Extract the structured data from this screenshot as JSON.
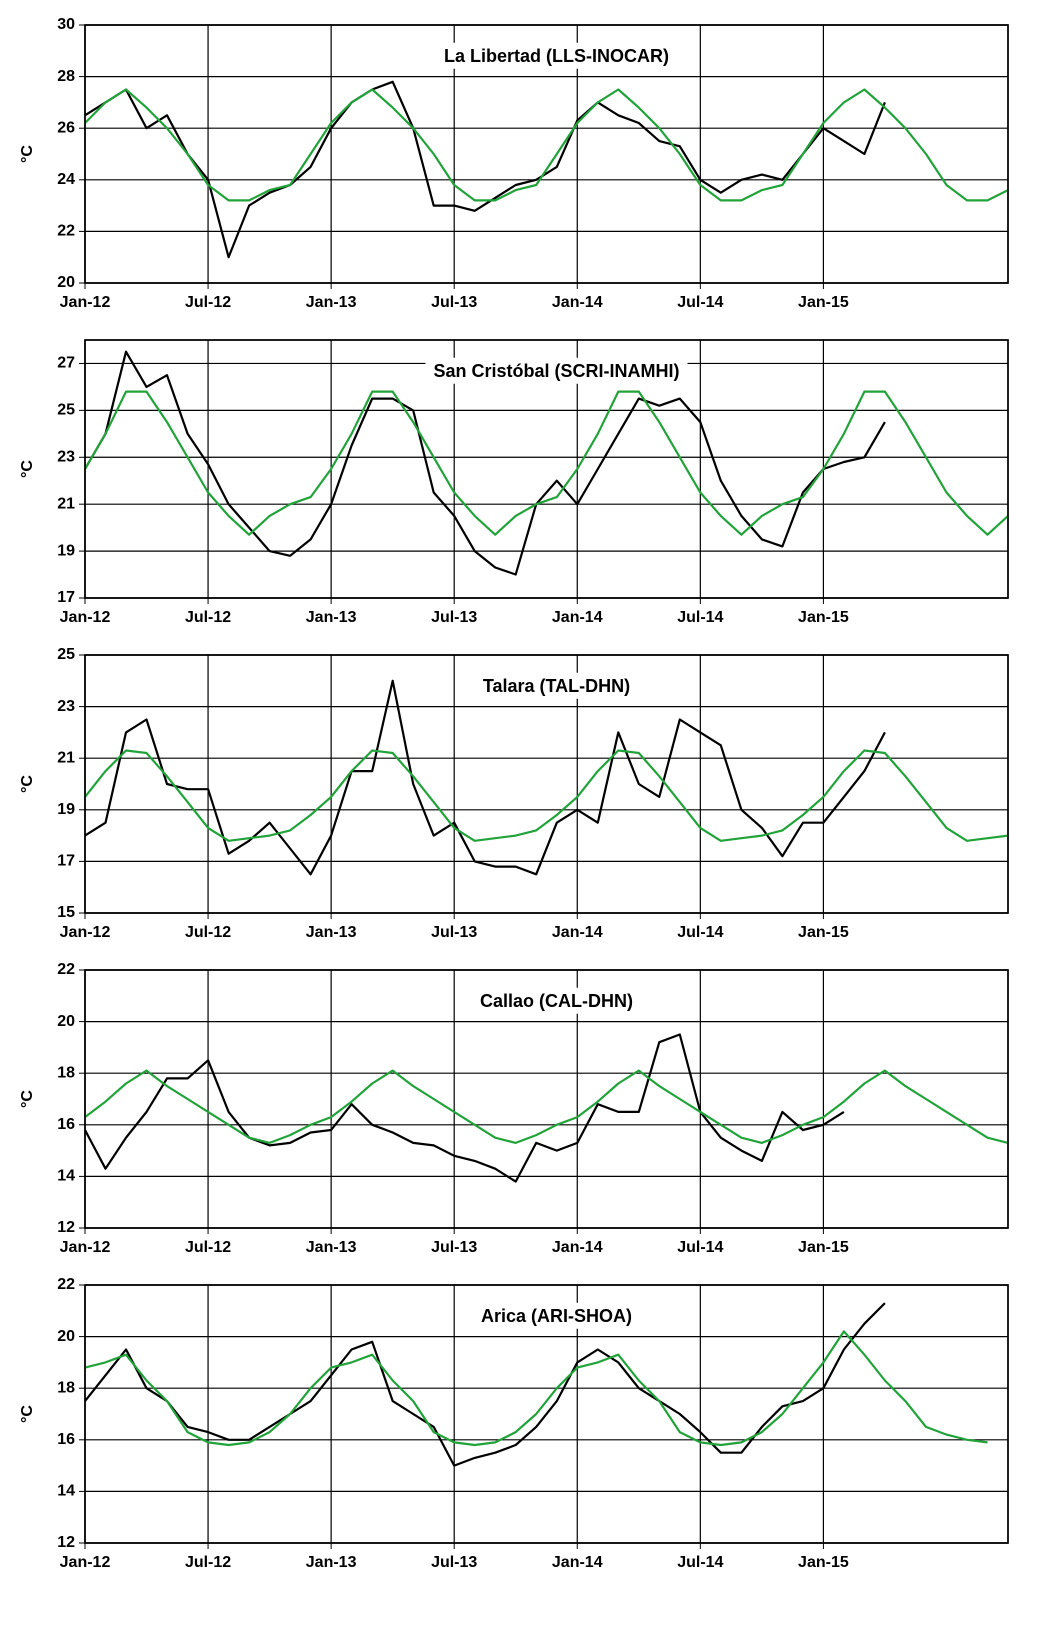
{
  "chart_data": [
    {
      "type": "line",
      "title": "La Libertad (LLS-INOCAR)",
      "ylabel": "°C",
      "x": [
        "2012-01",
        "2012-02",
        "2012-03",
        "2012-04",
        "2012-05",
        "2012-06",
        "2012-07",
        "2012-08",
        "2012-09",
        "2012-10",
        "2012-11",
        "2012-12",
        "2013-01",
        "2013-02",
        "2013-03",
        "2013-04",
        "2013-05",
        "2013-06",
        "2013-07",
        "2013-08",
        "2013-09",
        "2013-10",
        "2013-11",
        "2013-12",
        "2014-01",
        "2014-02",
        "2014-03",
        "2014-04",
        "2014-05",
        "2014-06",
        "2014-07",
        "2014-08",
        "2014-09",
        "2014-10",
        "2014-11",
        "2014-12",
        "2015-01",
        "2015-02",
        "2015-03",
        "2015-04",
        "2015-05",
        "2015-06",
        "2015-07",
        "2015-08",
        "2015-09",
        "2015-10"
      ],
      "xlim": [
        "2012-01",
        "2015-10"
      ],
      "xticks": [
        {
          "value": "2012-01",
          "label": "Jan-12"
        },
        {
          "value": "2012-07",
          "label": "Jul-12"
        },
        {
          "value": "2013-01",
          "label": "Jan-13"
        },
        {
          "value": "2013-07",
          "label": "Jul-13"
        },
        {
          "value": "2014-01",
          "label": "Jan-14"
        },
        {
          "value": "2014-07",
          "label": "Jul-14"
        },
        {
          "value": "2015-01",
          "label": "Jan-15"
        }
      ],
      "ylim": [
        20,
        30
      ],
      "yticks": [
        20,
        22,
        24,
        26,
        28,
        30
      ],
      "grid": true,
      "series": [
        {
          "color": "#000000",
          "values": [
            26.5,
            27,
            27.5,
            26,
            26.5,
            25,
            24,
            21,
            23,
            23.5,
            23.8,
            24.5,
            26,
            27,
            27.5,
            27.8,
            26,
            23,
            23,
            22.8,
            23.3,
            23.8,
            24,
            24.5,
            26.3,
            27,
            26.5,
            26.2,
            25.5,
            25.3,
            24,
            23.5,
            24,
            24.2,
            24,
            25,
            26,
            25.5,
            25,
            27,
            null,
            null,
            null,
            null,
            null,
            null
          ]
        },
        {
          "color": "#22a33a",
          "values": [
            26.2,
            27,
            27.5,
            26.8,
            26,
            25,
            23.8,
            23.2,
            23.2,
            23.6,
            23.8,
            25,
            26.2,
            27,
            27.5,
            26.8,
            26,
            25,
            23.8,
            23.2,
            23.2,
            23.6,
            23.8,
            25,
            26.2,
            27,
            27.5,
            26.8,
            26,
            25,
            23.8,
            23.2,
            23.2,
            23.6,
            23.8,
            25,
            26.2,
            27,
            27.5,
            26.8,
            26,
            25,
            23.8,
            23.2,
            23.2,
            23.6
          ]
        }
      ]
    },
    {
      "type": "line",
      "title": "San Cristóbal (SCRI-INAMHI)",
      "ylabel": "°C",
      "x": [
        "2012-01",
        "2012-02",
        "2012-03",
        "2012-04",
        "2012-05",
        "2012-06",
        "2012-07",
        "2012-08",
        "2012-09",
        "2012-10",
        "2012-11",
        "2012-12",
        "2013-01",
        "2013-02",
        "2013-03",
        "2013-04",
        "2013-05",
        "2013-06",
        "2013-07",
        "2013-08",
        "2013-09",
        "2013-10",
        "2013-11",
        "2013-12",
        "2014-01",
        "2014-02",
        "2014-03",
        "2014-04",
        "2014-05",
        "2014-06",
        "2014-07",
        "2014-08",
        "2014-09",
        "2014-10",
        "2014-11",
        "2014-12",
        "2015-01",
        "2015-02",
        "2015-03",
        "2015-04",
        "2015-05",
        "2015-06",
        "2015-07",
        "2015-08",
        "2015-09",
        "2015-10"
      ],
      "xlim": [
        "2012-01",
        "2015-10"
      ],
      "xticks": [
        {
          "value": "2012-01",
          "label": "Jan-12"
        },
        {
          "value": "2012-07",
          "label": "Jul-12"
        },
        {
          "value": "2013-01",
          "label": "Jan-13"
        },
        {
          "value": "2013-07",
          "label": "Jul-13"
        },
        {
          "value": "2014-01",
          "label": "Jan-14"
        },
        {
          "value": "2014-07",
          "label": "Jul-14"
        },
        {
          "value": "2015-01",
          "label": "Jan-15"
        }
      ],
      "ylim": [
        17,
        28
      ],
      "yticks": [
        17,
        19,
        21,
        23,
        25,
        27
      ],
      "grid": true,
      "series": [
        {
          "color": "#000000",
          "values": [
            22.5,
            24,
            27.5,
            26,
            26.5,
            24,
            22.7,
            21,
            20,
            19,
            18.8,
            19.5,
            21,
            23.5,
            25.5,
            25.5,
            25,
            21.5,
            20.5,
            19,
            18.3,
            18,
            21,
            22,
            21,
            22.5,
            24,
            25.5,
            25.2,
            25.5,
            24.5,
            22,
            20.5,
            19.5,
            19.2,
            21.5,
            22.5,
            22.8,
            23,
            24.5,
            null,
            null,
            null,
            null,
            null,
            null
          ]
        },
        {
          "color": "#22a33a",
          "values": [
            22.5,
            24,
            25.8,
            25.8,
            24.5,
            23,
            21.5,
            20.5,
            19.7,
            20.5,
            21,
            21.3,
            22.5,
            24,
            25.8,
            25.8,
            24.5,
            23,
            21.5,
            20.5,
            19.7,
            20.5,
            21,
            21.3,
            22.5,
            24,
            25.8,
            25.8,
            24.5,
            23,
            21.5,
            20.5,
            19.7,
            20.5,
            21,
            21.3,
            22.5,
            24,
            25.8,
            25.8,
            24.5,
            23,
            21.5,
            20.5,
            19.7,
            20.5
          ]
        }
      ]
    },
    {
      "type": "line",
      "title": "Talara (TAL-DHN)",
      "ylabel": "°C",
      "x": [
        "2012-01",
        "2012-02",
        "2012-03",
        "2012-04",
        "2012-05",
        "2012-06",
        "2012-07",
        "2012-08",
        "2012-09",
        "2012-10",
        "2012-11",
        "2012-12",
        "2013-01",
        "2013-02",
        "2013-03",
        "2013-04",
        "2013-05",
        "2013-06",
        "2013-07",
        "2013-08",
        "2013-09",
        "2013-10",
        "2013-11",
        "2013-12",
        "2014-01",
        "2014-02",
        "2014-03",
        "2014-04",
        "2014-05",
        "2014-06",
        "2014-07",
        "2014-08",
        "2014-09",
        "2014-10",
        "2014-11",
        "2014-12",
        "2015-01",
        "2015-02",
        "2015-03",
        "2015-04",
        "2015-05",
        "2015-06",
        "2015-07",
        "2015-08",
        "2015-09",
        "2015-10"
      ],
      "xlim": [
        "2012-01",
        "2015-10"
      ],
      "xticks": [
        {
          "value": "2012-01",
          "label": "Jan-12"
        },
        {
          "value": "2012-07",
          "label": "Jul-12"
        },
        {
          "value": "2013-01",
          "label": "Jan-13"
        },
        {
          "value": "2013-07",
          "label": "Jul-13"
        },
        {
          "value": "2014-01",
          "label": "Jan-14"
        },
        {
          "value": "2014-07",
          "label": "Jul-14"
        },
        {
          "value": "2015-01",
          "label": "Jan-15"
        }
      ],
      "ylim": [
        15,
        25
      ],
      "yticks": [
        15,
        17,
        19,
        21,
        23,
        25
      ],
      "grid": true,
      "series": [
        {
          "color": "#000000",
          "values": [
            18,
            18.5,
            22,
            22.5,
            20,
            19.8,
            19.8,
            17.3,
            17.8,
            18.5,
            17.5,
            16.5,
            18,
            20.5,
            20.5,
            24,
            20,
            18,
            18.5,
            17,
            16.8,
            16.8,
            16.5,
            18.5,
            19,
            18.5,
            22,
            20,
            19.5,
            22.5,
            22,
            21.5,
            19,
            18.3,
            17.2,
            18.5,
            18.5,
            19.5,
            20.5,
            22,
            null,
            null,
            null,
            null,
            null,
            null
          ]
        },
        {
          "color": "#22a33a",
          "values": [
            19.5,
            20.5,
            21.3,
            21.2,
            20.3,
            19.3,
            18.3,
            17.8,
            17.9,
            18,
            18.2,
            18.8,
            19.5,
            20.5,
            21.3,
            21.2,
            20.3,
            19.3,
            18.3,
            17.8,
            17.9,
            18,
            18.2,
            18.8,
            19.5,
            20.5,
            21.3,
            21.2,
            20.3,
            19.3,
            18.3,
            17.8,
            17.9,
            18,
            18.2,
            18.8,
            19.5,
            20.5,
            21.3,
            21.2,
            20.3,
            19.3,
            18.3,
            17.8,
            17.9,
            18
          ]
        }
      ]
    },
    {
      "type": "line",
      "title": "Callao (CAL-DHN)",
      "ylabel": "°C",
      "x": [
        "2012-01",
        "2012-02",
        "2012-03",
        "2012-04",
        "2012-05",
        "2012-06",
        "2012-07",
        "2012-08",
        "2012-09",
        "2012-10",
        "2012-11",
        "2012-12",
        "2013-01",
        "2013-02",
        "2013-03",
        "2013-04",
        "2013-05",
        "2013-06",
        "2013-07",
        "2013-08",
        "2013-09",
        "2013-10",
        "2013-11",
        "2013-12",
        "2014-01",
        "2014-02",
        "2014-03",
        "2014-04",
        "2014-05",
        "2014-06",
        "2014-07",
        "2014-08",
        "2014-09",
        "2014-10",
        "2014-11",
        "2014-12",
        "2015-01",
        "2015-02",
        "2015-03",
        "2015-04",
        "2015-05",
        "2015-06",
        "2015-07",
        "2015-08",
        "2015-09",
        "2015-10"
      ],
      "xlim": [
        "2012-01",
        "2015-10"
      ],
      "xticks": [
        {
          "value": "2012-01",
          "label": "Jan-12"
        },
        {
          "value": "2012-07",
          "label": "Jul-12"
        },
        {
          "value": "2013-01",
          "label": "Jan-13"
        },
        {
          "value": "2013-07",
          "label": "Jul-13"
        },
        {
          "value": "2014-01",
          "label": "Jan-14"
        },
        {
          "value": "2014-07",
          "label": "Jul-14"
        },
        {
          "value": "2015-01",
          "label": "Jan-15"
        }
      ],
      "ylim": [
        12,
        22
      ],
      "yticks": [
        12,
        14,
        16,
        18,
        20,
        22
      ],
      "grid": true,
      "series": [
        {
          "color": "#000000",
          "values": [
            15.8,
            14.3,
            15.5,
            16.5,
            17.8,
            17.8,
            18.5,
            16.5,
            15.5,
            15.2,
            15.3,
            15.7,
            15.8,
            16.8,
            16,
            15.7,
            15.3,
            15.2,
            14.8,
            14.6,
            14.3,
            13.8,
            15.3,
            15,
            15.3,
            16.8,
            16.5,
            16.5,
            19.2,
            19.5,
            16.5,
            15.5,
            15,
            14.6,
            16.5,
            15.8,
            16,
            16.5,
            null,
            null,
            null,
            null,
            null,
            null,
            null,
            null
          ]
        },
        {
          "color": "#22a33a",
          "values": [
            16.3,
            16.9,
            17.6,
            18.1,
            17.5,
            17,
            16.5,
            16,
            15.5,
            15.3,
            15.6,
            16,
            16.3,
            16.9,
            17.6,
            18.1,
            17.5,
            17,
            16.5,
            16,
            15.5,
            15.3,
            15.6,
            16,
            16.3,
            16.9,
            17.6,
            18.1,
            17.5,
            17,
            16.5,
            16,
            15.5,
            15.3,
            15.6,
            16,
            16.3,
            16.9,
            17.6,
            18.1,
            17.5,
            17,
            16.5,
            16,
            15.5,
            15.3
          ]
        }
      ]
    },
    {
      "type": "line",
      "title": "Arica (ARI-SHOA)",
      "ylabel": "°C",
      "x": [
        "2012-01",
        "2012-02",
        "2012-03",
        "2012-04",
        "2012-05",
        "2012-06",
        "2012-07",
        "2012-08",
        "2012-09",
        "2012-10",
        "2012-11",
        "2012-12",
        "2013-01",
        "2013-02",
        "2013-03",
        "2013-04",
        "2013-05",
        "2013-06",
        "2013-07",
        "2013-08",
        "2013-09",
        "2013-10",
        "2013-11",
        "2013-12",
        "2014-01",
        "2014-02",
        "2014-03",
        "2014-04",
        "2014-05",
        "2014-06",
        "2014-07",
        "2014-08",
        "2014-09",
        "2014-10",
        "2014-11",
        "2014-12",
        "2015-01",
        "2015-02",
        "2015-03",
        "2015-04",
        "2015-05",
        "2015-06",
        "2015-07",
        "2015-08",
        "2015-09",
        "2015-10"
      ],
      "xlim": [
        "2012-01",
        "2015-10"
      ],
      "xticks": [
        {
          "value": "2012-01",
          "label": "Jan-12"
        },
        {
          "value": "2012-07",
          "label": "Jul-12"
        },
        {
          "value": "2013-01",
          "label": "Jan-13"
        },
        {
          "value": "2013-07",
          "label": "Jul-13"
        },
        {
          "value": "2014-01",
          "label": "Jan-14"
        },
        {
          "value": "2014-07",
          "label": "Jul-14"
        },
        {
          "value": "2015-01",
          "label": "Jan-15"
        }
      ],
      "ylim": [
        12,
        22
      ],
      "yticks": [
        12,
        14,
        16,
        18,
        20,
        22
      ],
      "grid": true,
      "series": [
        {
          "color": "#000000",
          "values": [
            17.5,
            18.5,
            19.5,
            18,
            17.5,
            16.5,
            16.3,
            16,
            16,
            16.5,
            17,
            17.5,
            18.5,
            19.5,
            19.8,
            17.5,
            17,
            16.5,
            15,
            15.3,
            15.5,
            15.8,
            16.5,
            17.5,
            19,
            19.5,
            19,
            18,
            17.5,
            17,
            16.3,
            15.5,
            15.5,
            16.5,
            17.3,
            17.5,
            18,
            19.5,
            20.5,
            21.3,
            null,
            null,
            null,
            null,
            null,
            null
          ]
        },
        {
          "color": "#22a33a",
          "values": [
            18.8,
            19,
            19.3,
            18.3,
            17.5,
            16.3,
            15.9,
            15.8,
            15.9,
            16.3,
            17,
            18,
            18.8,
            19,
            19.3,
            18.3,
            17.5,
            16.3,
            15.9,
            15.8,
            15.9,
            16.3,
            17,
            18,
            18.8,
            19,
            19.3,
            18.3,
            17.5,
            16.3,
            15.9,
            15.8,
            15.9,
            16.3,
            17,
            18,
            19,
            20.2,
            19.3,
            18.3,
            17.5,
            16.5,
            16.2,
            16,
            15.9,
            null
          ]
        }
      ]
    }
  ]
}
